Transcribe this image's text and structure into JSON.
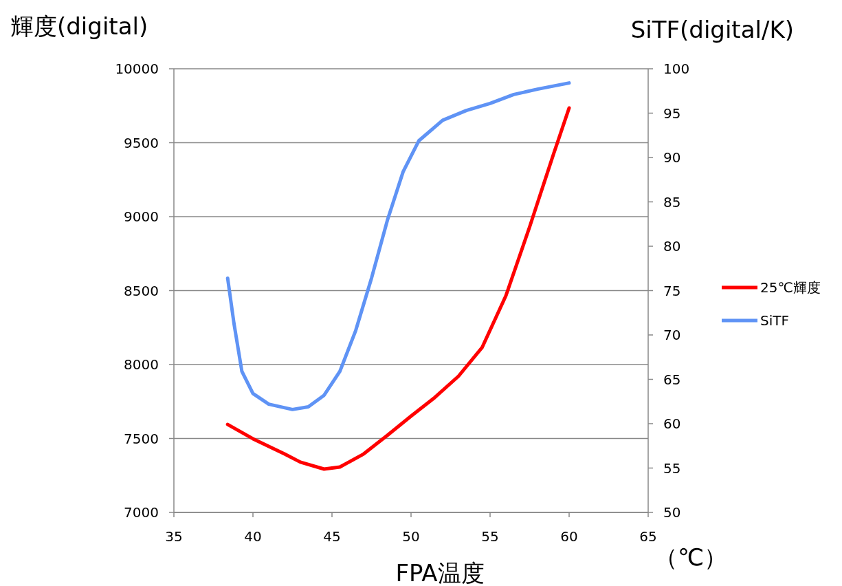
{
  "chart_data": {
    "type": "line",
    "ylabel": "輝度(digital)",
    "y2label": "SiTF(digital/K)",
    "xlabel": "FPA温度",
    "annotations": [
      "（℃）"
    ],
    "xlim": [
      35,
      65
    ],
    "xticks": [
      35,
      40,
      45,
      50,
      55,
      60,
      65
    ],
    "ylim": [
      7000,
      10000
    ],
    "yticks": [
      7000,
      7500,
      8000,
      8500,
      9000,
      9500,
      10000
    ],
    "y2lim": [
      50,
      100
    ],
    "y2ticks": [
      50,
      55,
      60,
      65,
      70,
      75,
      80,
      85,
      90,
      95,
      100
    ],
    "grid": "y",
    "legend": "right",
    "series": [
      {
        "name": "25℃輝度",
        "color": "#ff0000",
        "x": [
          38.4,
          40,
          42,
          43,
          44.5,
          45.5,
          47,
          48.5,
          50,
          51.5,
          53,
          54.5,
          56,
          57.5,
          59,
          60
        ],
        "values": [
          7595,
          7498,
          7395,
          7340,
          7293,
          7307,
          7395,
          7521,
          7651,
          7777,
          7921,
          8116,
          8465,
          8930,
          9419,
          9735
        ]
      },
      {
        "name": "SiTF",
        "color": "#5f93f5",
        "axis": "y2",
        "x": [
          38.4,
          38.8,
          39.3,
          40,
          41,
          42.5,
          43.5,
          44.5,
          45.5,
          46.5,
          47.5,
          48.5,
          49.5,
          50.5,
          52,
          53.5,
          55,
          56.5,
          58,
          60
        ],
        "values": [
          76.4,
          71.3,
          65.9,
          63.4,
          62.2,
          61.6,
          61.9,
          63.2,
          65.9,
          70.5,
          76.4,
          82.9,
          88.4,
          91.9,
          94.2,
          95.3,
          96.1,
          97.1,
          97.7,
          98.4
        ]
      }
    ]
  }
}
